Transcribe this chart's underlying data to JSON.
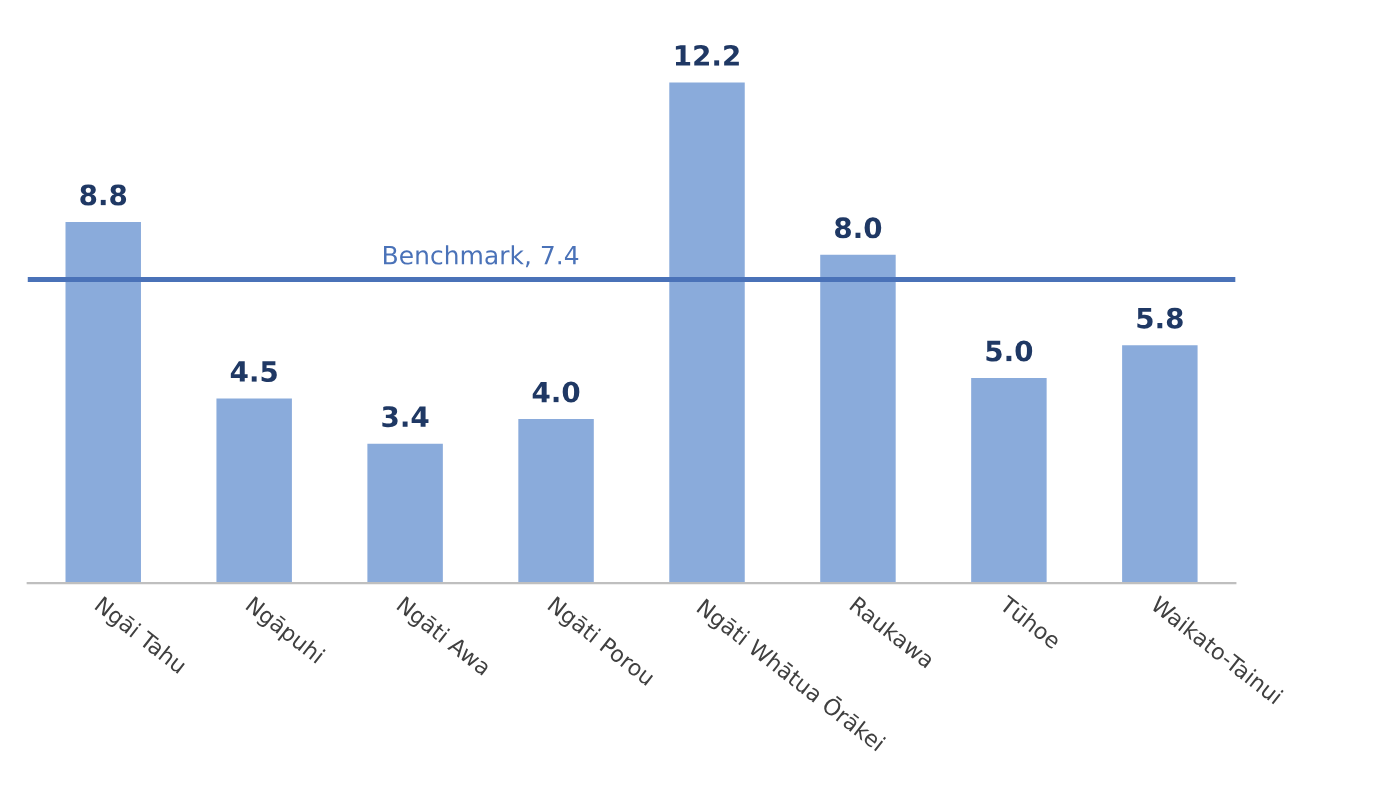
{
  "chart_data": {
    "type": "bar",
    "categories": [
      "Ngāi Tahu",
      "Ngāpuhi",
      "Ngāti Awa",
      "Ngāti Porou",
      "Ngāti Whātua Ōrākei",
      "Raukawa",
      "Tūhoe",
      "Waikato-Tainui"
    ],
    "values": [
      8.8,
      4.5,
      3.4,
      4.0,
      12.2,
      8.0,
      5.0,
      5.8
    ],
    "color": "#8aabdb",
    "value_labels": [
      "8.8",
      "4.5",
      "3.4",
      "4.0",
      "12.2",
      "8.0",
      "5.0",
      "5.8"
    ],
    "ref_lines": [
      {
        "axis": "y",
        "value": 7.4,
        "label": "Benchmark, 7.4",
        "color": "#4a72b8"
      }
    ],
    "grid": false,
    "legend": false
  }
}
